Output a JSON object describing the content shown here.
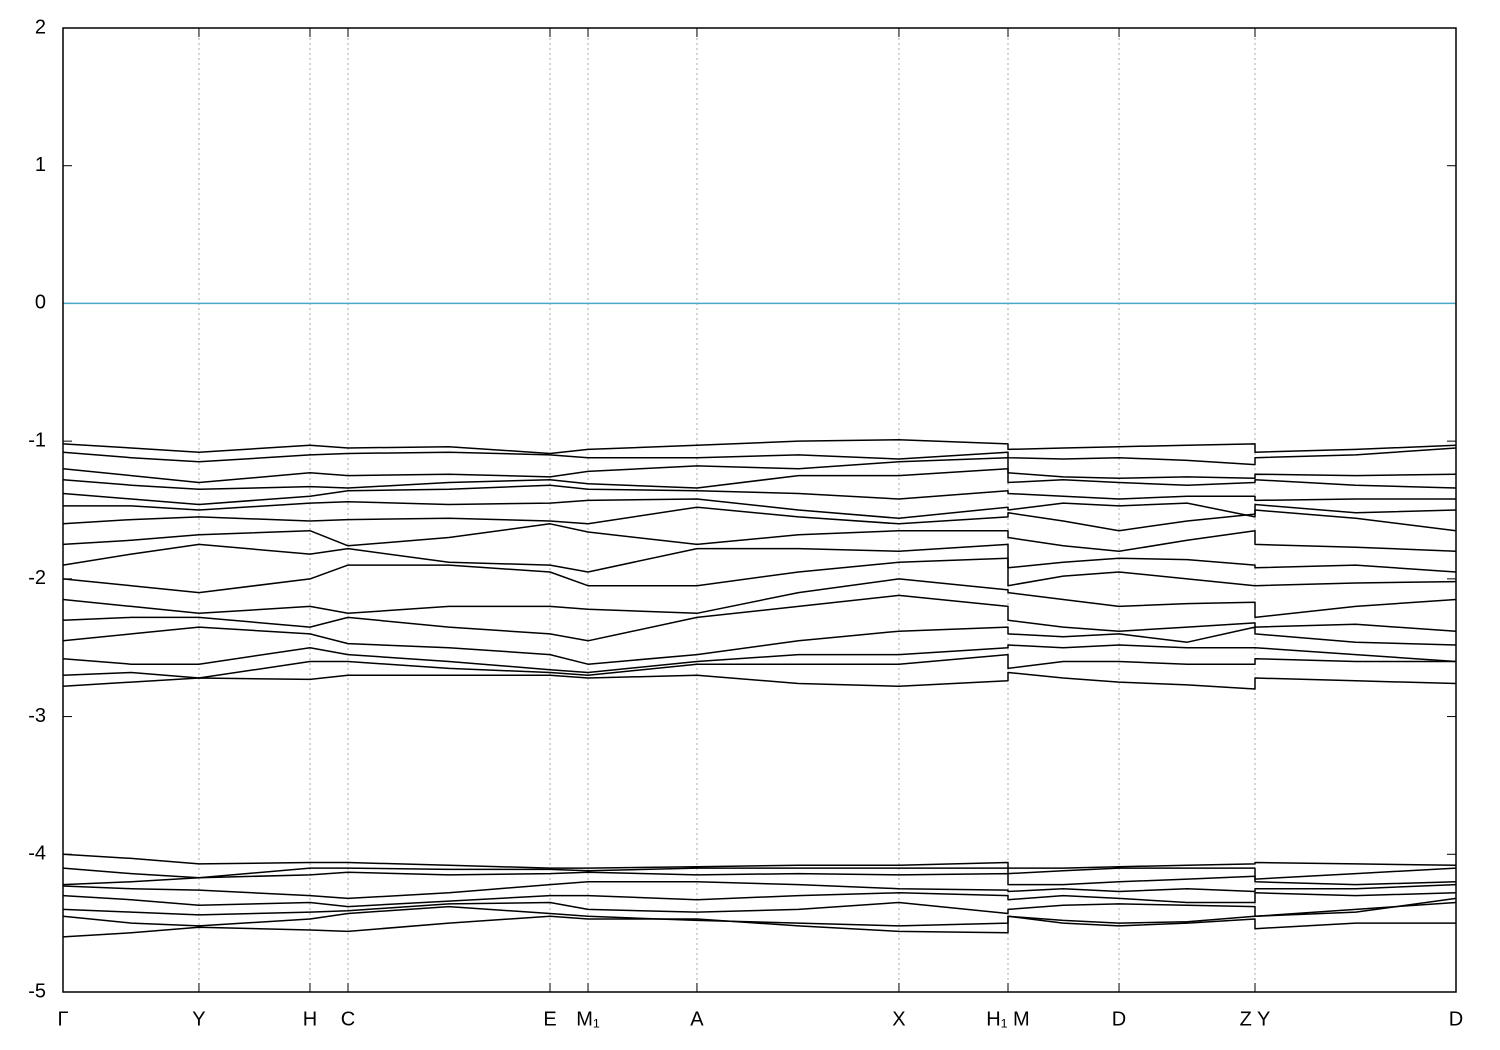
{
  "chart_data": {
    "type": "line",
    "xlim": [
      0,
      10
    ],
    "ylim": [
      -5,
      2
    ],
    "yticks": [
      -5,
      -4,
      -3,
      -2,
      -1,
      0,
      1,
      2
    ],
    "xticks": [
      {
        "value": 0,
        "label": "Γ"
      },
      {
        "value": 0.976,
        "label": "Y"
      },
      {
        "value": 1.773,
        "label": "H"
      },
      {
        "value": 2.046,
        "label": "C"
      },
      {
        "value": 3.496,
        "label": "E"
      },
      {
        "value": 3.769,
        "label": "M₁"
      },
      {
        "value": 4.551,
        "label": "A"
      },
      {
        "value": 6.001,
        "label": "X"
      },
      {
        "value": 6.784,
        "label": "H₁ M"
      },
      {
        "value": 7.581,
        "label": "D"
      },
      {
        "value": 8.557,
        "label": "Z Y"
      },
      {
        "value": 10,
        "label": "D"
      }
    ],
    "x_grid": true,
    "fermi_level": 0,
    "fermi_color": "#4aa9c8",
    "x": [
      0,
      0.49,
      0.976,
      1.773,
      2.046,
      2.77,
      3.496,
      3.769,
      4.551,
      5.28,
      6.001,
      6.784,
      6.784,
      7.18,
      7.581,
      8.07,
      8.557,
      8.557,
      9.28,
      10
    ],
    "series": [
      {
        "color": "#000000",
        "values": [
          -1.02,
          -1.05,
          -1.08,
          -1.03,
          -1.05,
          -1.04,
          -1.09,
          -1.06,
          -1.03,
          -1.0,
          -0.99,
          -1.02,
          -1.06,
          -1.05,
          -1.04,
          -1.03,
          -1.02,
          -1.08,
          -1.06,
          -1.03
        ]
      },
      {
        "color": "#000000",
        "values": [
          -1.08,
          -1.12,
          -1.15,
          -1.1,
          -1.09,
          -1.08,
          -1.1,
          -1.12,
          -1.12,
          -1.1,
          -1.13,
          -1.08,
          -1.12,
          -1.13,
          -1.12,
          -1.14,
          -1.17,
          -1.12,
          -1.1,
          -1.05
        ]
      },
      {
        "color": "#000000",
        "values": [
          -1.2,
          -1.25,
          -1.3,
          -1.23,
          -1.25,
          -1.24,
          -1.26,
          -1.22,
          -1.18,
          -1.2,
          -1.15,
          -1.12,
          -1.23,
          -1.26,
          -1.27,
          -1.26,
          -1.27,
          -1.24,
          -1.25,
          -1.24
        ]
      },
      {
        "color": "#000000",
        "values": [
          -1.28,
          -1.32,
          -1.35,
          -1.33,
          -1.34,
          -1.3,
          -1.28,
          -1.31,
          -1.34,
          -1.25,
          -1.25,
          -1.2,
          -1.3,
          -1.28,
          -1.3,
          -1.32,
          -1.3,
          -1.28,
          -1.32,
          -1.34
        ]
      },
      {
        "color": "#000000",
        "values": [
          -1.38,
          -1.42,
          -1.46,
          -1.4,
          -1.36,
          -1.35,
          -1.32,
          -1.35,
          -1.36,
          -1.38,
          -1.42,
          -1.36,
          -1.38,
          -1.4,
          -1.42,
          -1.4,
          -1.4,
          -1.43,
          -1.42,
          -1.42
        ]
      },
      {
        "color": "#000000",
        "values": [
          -1.47,
          -1.47,
          -1.5,
          -1.45,
          -1.44,
          -1.46,
          -1.45,
          -1.43,
          -1.42,
          -1.5,
          -1.56,
          -1.48,
          -1.5,
          -1.45,
          -1.47,
          -1.45,
          -1.55,
          -1.46,
          -1.52,
          -1.5
        ]
      },
      {
        "color": "#000000",
        "values": [
          -1.6,
          -1.57,
          -1.55,
          -1.58,
          -1.57,
          -1.56,
          -1.58,
          -1.6,
          -1.48,
          -1.55,
          -1.6,
          -1.55,
          -1.52,
          -1.58,
          -1.65,
          -1.58,
          -1.53,
          -1.5,
          -1.56,
          -1.65
        ]
      },
      {
        "color": "#000000",
        "values": [
          -1.75,
          -1.72,
          -1.68,
          -1.65,
          -1.76,
          -1.7,
          -1.6,
          -1.66,
          -1.75,
          -1.68,
          -1.65,
          -1.65,
          -1.7,
          -1.76,
          -1.8,
          -1.72,
          -1.65,
          -1.75,
          -1.77,
          -1.8
        ]
      },
      {
        "color": "#000000",
        "values": [
          -1.9,
          -1.82,
          -1.75,
          -1.82,
          -1.78,
          -1.88,
          -1.9,
          -1.95,
          -1.78,
          -1.78,
          -1.8,
          -1.75,
          -1.92,
          -1.88,
          -1.85,
          -1.86,
          -1.9,
          -1.92,
          -1.9,
          -1.95
        ]
      },
      {
        "color": "#000000",
        "values": [
          -2.0,
          -2.05,
          -2.1,
          -2.0,
          -1.9,
          -1.9,
          -1.95,
          -2.05,
          -2.05,
          -1.95,
          -1.88,
          -1.85,
          -2.05,
          -1.98,
          -1.95,
          -2.0,
          -2.05,
          -2.05,
          -2.03,
          -2.02
        ]
      },
      {
        "color": "#000000",
        "values": [
          -2.15,
          -2.2,
          -2.25,
          -2.2,
          -2.25,
          -2.2,
          -2.2,
          -2.22,
          -2.25,
          -2.1,
          -2.0,
          -2.08,
          -2.1,
          -2.15,
          -2.2,
          -2.18,
          -2.17,
          -2.28,
          -2.2,
          -2.15
        ]
      },
      {
        "color": "#000000",
        "values": [
          -2.3,
          -2.28,
          -2.28,
          -2.35,
          -2.28,
          -2.35,
          -2.4,
          -2.45,
          -2.28,
          -2.2,
          -2.12,
          -2.2,
          -2.3,
          -2.35,
          -2.38,
          -2.35,
          -2.32,
          -2.35,
          -2.33,
          -2.38
        ]
      },
      {
        "color": "#000000",
        "values": [
          -2.45,
          -2.4,
          -2.35,
          -2.4,
          -2.47,
          -2.5,
          -2.55,
          -2.62,
          -2.55,
          -2.45,
          -2.38,
          -2.35,
          -2.4,
          -2.42,
          -2.4,
          -2.46,
          -2.35,
          -2.4,
          -2.46,
          -2.48
        ]
      },
      {
        "color": "#000000",
        "values": [
          -2.58,
          -2.62,
          -2.62,
          -2.5,
          -2.55,
          -2.6,
          -2.66,
          -2.68,
          -2.6,
          -2.55,
          -2.55,
          -2.5,
          -2.48,
          -2.5,
          -2.48,
          -2.5,
          -2.5,
          -2.5,
          -2.55,
          -2.6
        ]
      },
      {
        "color": "#000000",
        "values": [
          -2.7,
          -2.68,
          -2.72,
          -2.6,
          -2.6,
          -2.65,
          -2.68,
          -2.7,
          -2.62,
          -2.62,
          -2.62,
          -2.55,
          -2.65,
          -2.6,
          -2.6,
          -2.62,
          -2.62,
          -2.58,
          -2.6,
          -2.6
        ]
      },
      {
        "color": "#000000",
        "values": [
          -2.78,
          -2.75,
          -2.72,
          -2.73,
          -2.7,
          -2.7,
          -2.7,
          -2.72,
          -2.7,
          -2.76,
          -2.78,
          -2.74,
          -2.68,
          -2.72,
          -2.75,
          -2.77,
          -2.8,
          -2.72,
          -2.74,
          -2.76
        ]
      },
      {
        "color": "#000000",
        "values": [
          -4.0,
          -4.03,
          -4.07,
          -4.06,
          -4.06,
          -4.08,
          -4.1,
          -4.1,
          -4.09,
          -4.08,
          -4.08,
          -4.06,
          -4.1,
          -4.1,
          -4.09,
          -4.08,
          -4.07,
          -4.06,
          -4.07,
          -4.08
        ]
      },
      {
        "color": "#000000",
        "values": [
          -4.1,
          -4.14,
          -4.17,
          -4.1,
          -4.1,
          -4.11,
          -4.11,
          -4.12,
          -4.1,
          -4.1,
          -4.1,
          -4.1,
          -4.14,
          -4.12,
          -4.1,
          -4.1,
          -4.1,
          -4.18,
          -4.14,
          -4.1
        ]
      },
      {
        "color": "#000000",
        "values": [
          -4.22,
          -4.2,
          -4.17,
          -4.15,
          -4.13,
          -4.15,
          -4.14,
          -4.13,
          -4.15,
          -4.14,
          -4.15,
          -4.14,
          -4.22,
          -4.22,
          -4.2,
          -4.18,
          -4.16,
          -4.2,
          -4.22,
          -4.2
        ]
      },
      {
        "color": "#000000",
        "values": [
          -4.23,
          -4.25,
          -4.26,
          -4.3,
          -4.32,
          -4.28,
          -4.22,
          -4.2,
          -4.2,
          -4.22,
          -4.25,
          -4.26,
          -4.27,
          -4.25,
          -4.27,
          -4.25,
          -4.27,
          -4.25,
          -4.25,
          -4.22
        ]
      },
      {
        "color": "#000000",
        "values": [
          -4.3,
          -4.33,
          -4.37,
          -4.35,
          -4.38,
          -4.34,
          -4.3,
          -4.3,
          -4.33,
          -4.3,
          -4.28,
          -4.3,
          -4.33,
          -4.3,
          -4.32,
          -4.35,
          -4.35,
          -4.28,
          -4.3,
          -4.28
        ]
      },
      {
        "color": "#000000",
        "values": [
          -4.4,
          -4.42,
          -4.44,
          -4.42,
          -4.41,
          -4.36,
          -4.35,
          -4.4,
          -4.42,
          -4.4,
          -4.35,
          -4.43,
          -4.4,
          -4.37,
          -4.36,
          -4.37,
          -4.38,
          -4.45,
          -4.4,
          -4.35
        ]
      },
      {
        "color": "#000000",
        "values": [
          -4.45,
          -4.5,
          -4.52,
          -4.47,
          -4.43,
          -4.38,
          -4.43,
          -4.45,
          -4.48,
          -4.5,
          -4.52,
          -4.5,
          -4.45,
          -4.48,
          -4.5,
          -4.49,
          -4.45,
          -4.45,
          -4.42,
          -4.32
        ]
      },
      {
        "color": "#000000",
        "values": [
          -4.6,
          -4.57,
          -4.53,
          -4.55,
          -4.56,
          -4.5,
          -4.45,
          -4.47,
          -4.47,
          -4.52,
          -4.56,
          -4.57,
          -4.45,
          -4.5,
          -4.52,
          -4.5,
          -4.47,
          -4.54,
          -4.5,
          -4.5
        ]
      }
    ]
  }
}
